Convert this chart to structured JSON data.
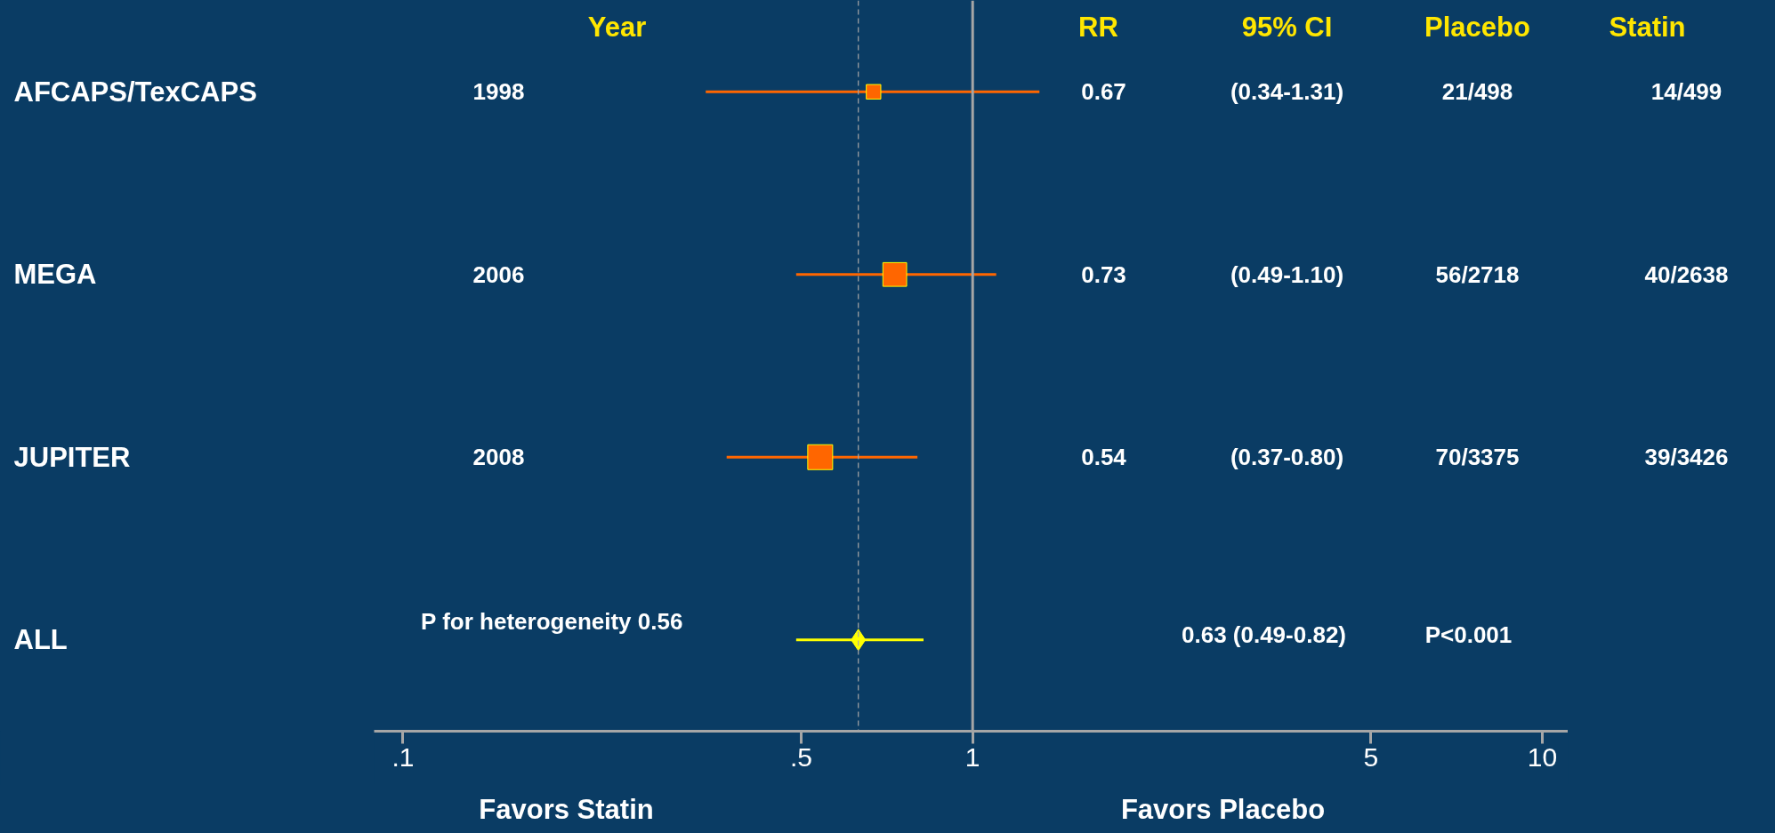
{
  "chart_data": {
    "type": "scatter",
    "orientation": "horizontal",
    "log": "x",
    "categories": [
      "AFCAPS/TexCAPS",
      "MEGA",
      "JUPITER",
      "ALL"
    ],
    "series": [
      {
        "type": "bubble",
        "color": "#ff6600",
        "marker": "square",
        "values": [
          0.67,
          0.73,
          0.54,
          null
        ],
        "sizes": [
          0.34,
          0.91,
          1,
          null
        ],
        "errors": [
          [
            0.34,
            1.31
          ],
          [
            0.49,
            1.1
          ],
          [
            0.37,
            0.8
          ],
          null
        ]
      },
      {
        "type": "scatter",
        "color": "#ffff00",
        "marker": "diamond",
        "values": [
          null,
          null,
          null,
          0.63
        ],
        "errors": [
          null,
          null,
          null,
          [
            0.49,
            0.82
          ]
        ]
      }
    ],
    "xlim": [
      0.089,
      11.1
    ],
    "xticks": [
      {
        "value": 0.1,
        "label": ".1"
      },
      {
        "value": 0.5,
        "label": ".5"
      },
      1,
      5,
      10
    ],
    "ref_lines": [
      {
        "axis": "x",
        "value": 1,
        "color": "#a6a6a6",
        "line_style": "solid"
      },
      {
        "axis": "x",
        "value": 0.63,
        "color": "#a6a6a6",
        "line_style": "dashed"
      }
    ],
    "annotations": [
      "Year",
      "RR",
      "95% CI",
      "Placebo",
      "Statin",
      "Favors Statin",
      "Favors Placebo",
      "1998",
      "0.67",
      "(0.34-1.31)",
      "21/498",
      "14/499",
      "2006",
      "0.73",
      "(0.49-1.10)",
      "56/2718",
      "40/2638",
      "2008",
      "0.54",
      "(0.37-0.80)",
      "70/3375",
      "39/3426",
      "P for heterogeneity 0.56",
      "0.63 (0.49-0.82)",
      "P<0.001"
    ]
  }
}
